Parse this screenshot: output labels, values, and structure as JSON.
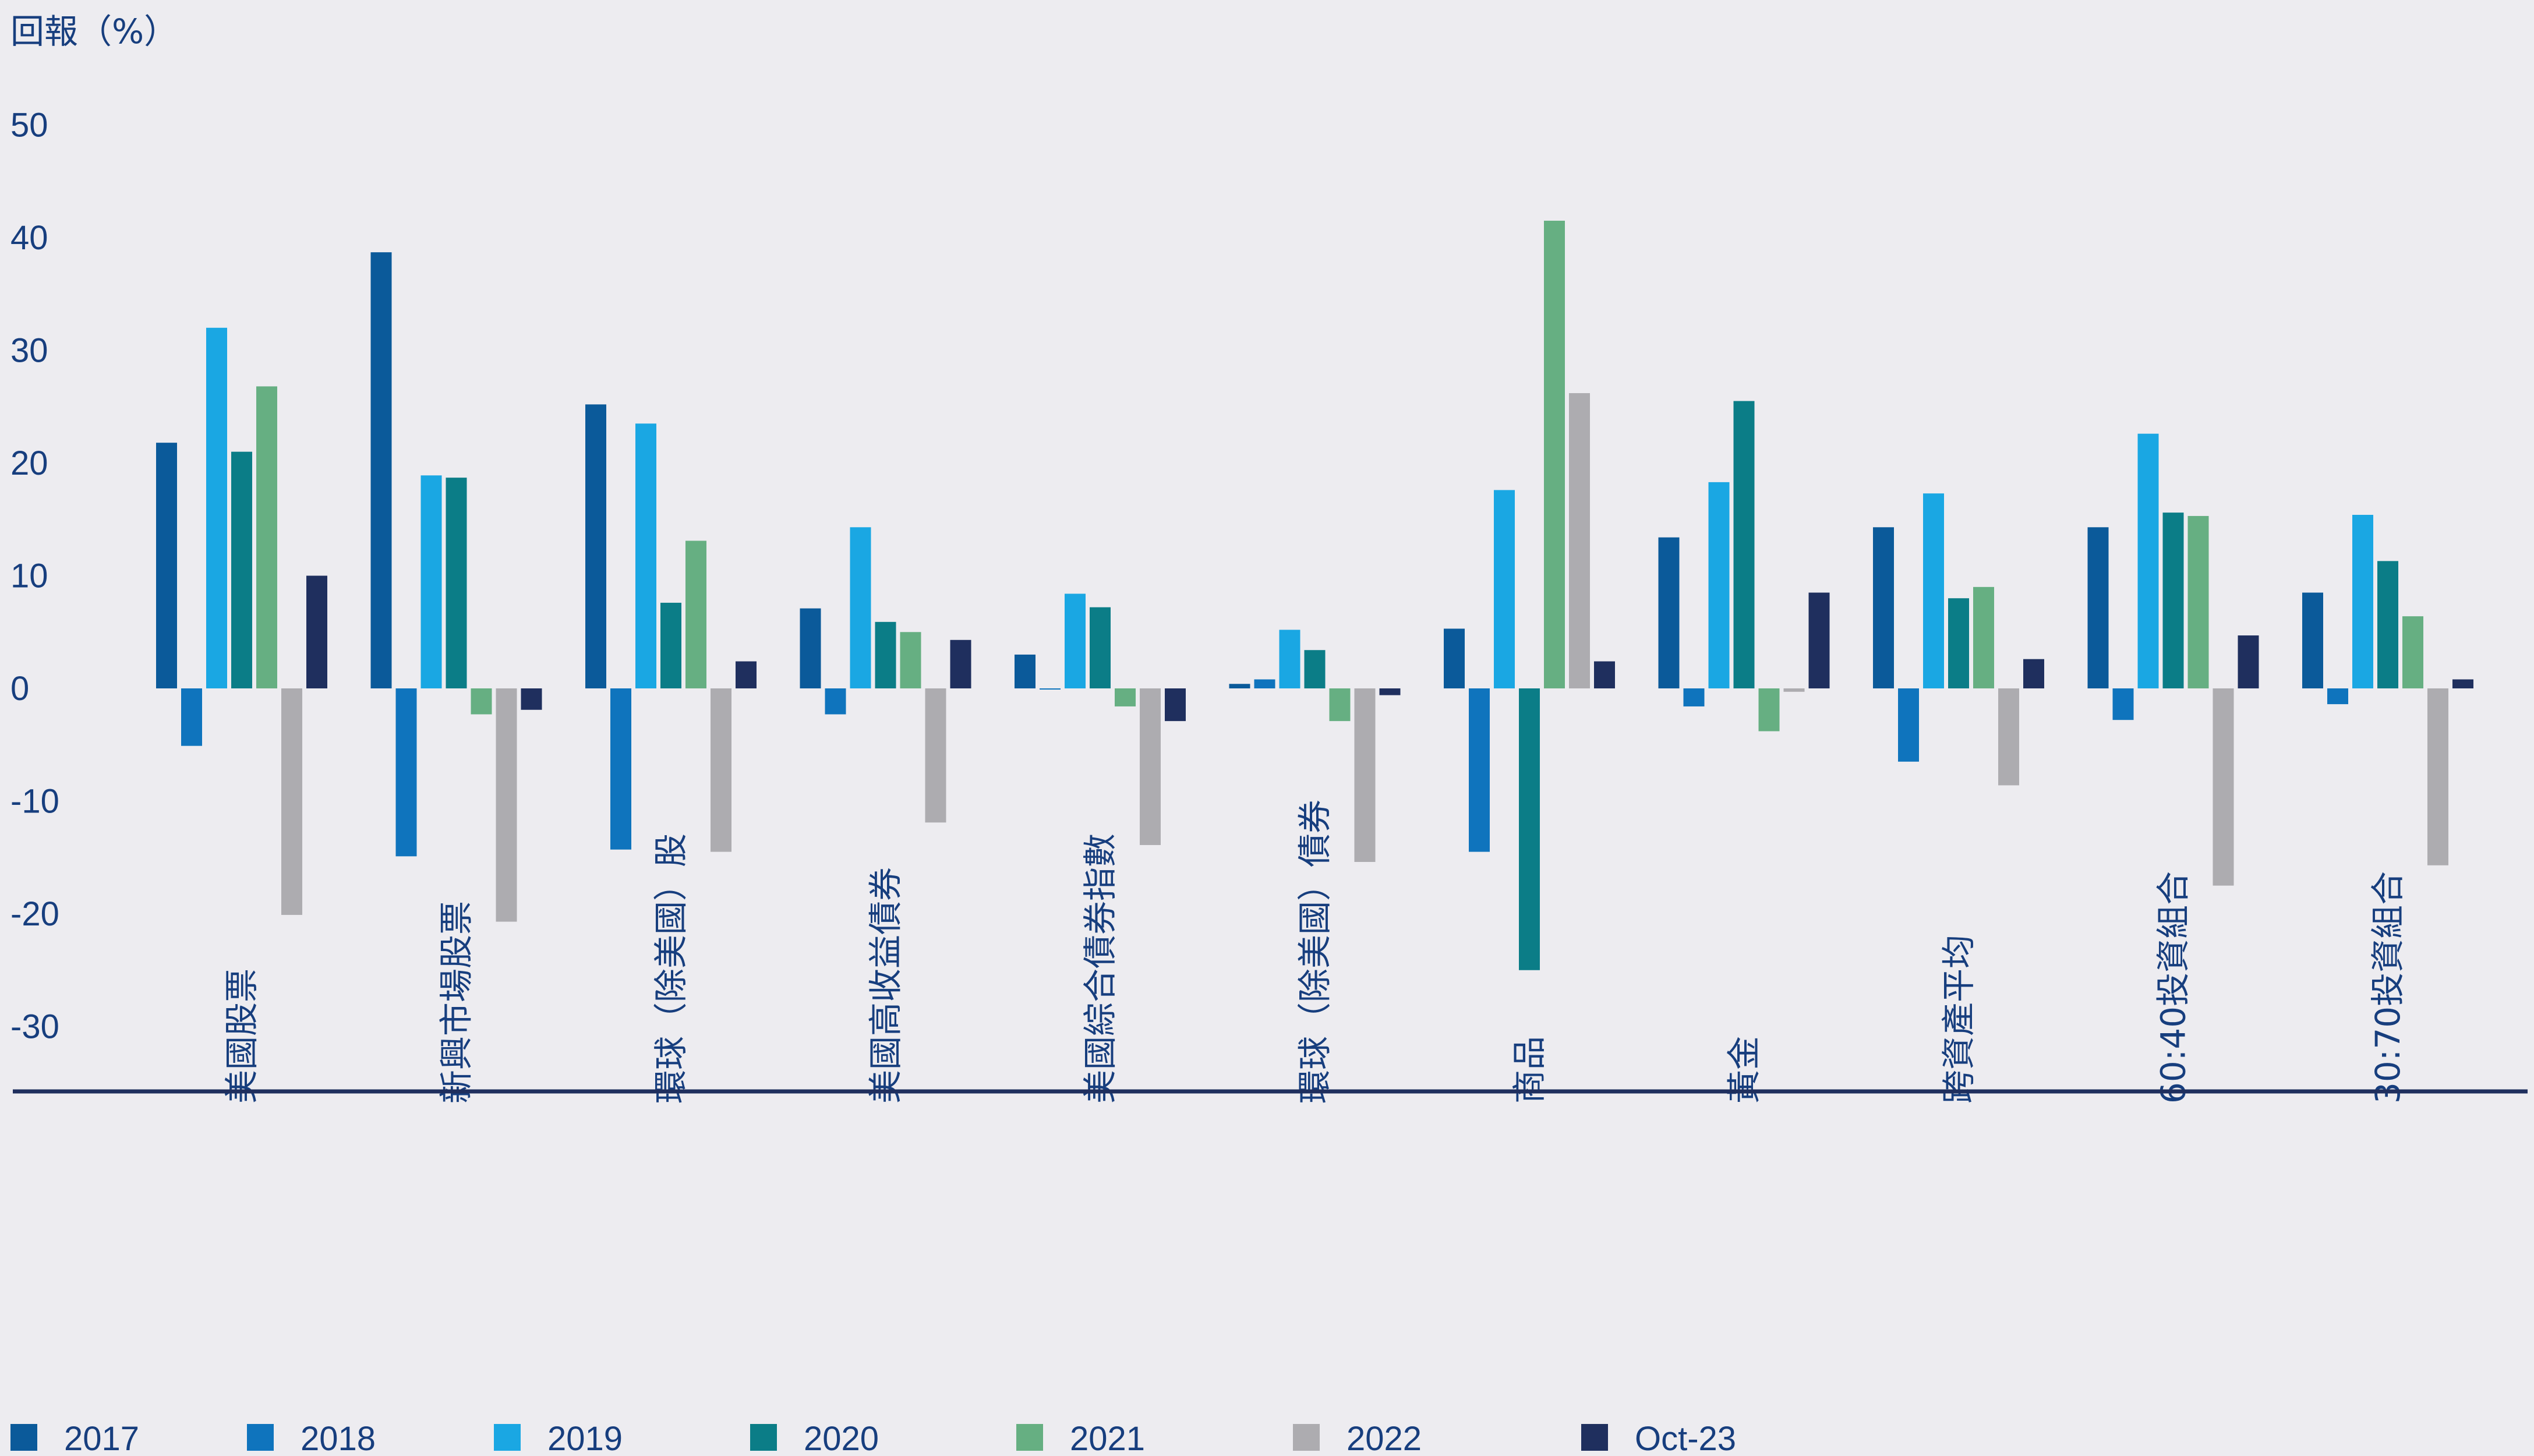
{
  "chart_data": {
    "type": "bar",
    "ylabel": "回報（%）",
    "yticks": [
      50,
      40,
      30,
      20,
      10,
      0,
      -10,
      -20,
      -30
    ],
    "ylim": [
      -35,
      55
    ],
    "categories": [
      "美國股票",
      "新興市場股票",
      "環球（除美國）股",
      "美國高收益債券",
      "美國綜合債券指數",
      "環球（除美國）債券",
      "商品",
      "黃金",
      "跨資產平均",
      "60:40投資組合",
      "30:70投資組合"
    ],
    "series": [
      {
        "name": "2017",
        "color": "#0b5a9a",
        "values": [
          21.8,
          38.7,
          25.2,
          7.1,
          3.0,
          0.4,
          5.3,
          13.4,
          14.3,
          14.3,
          8.5
        ]
      },
      {
        "name": "2018",
        "color": "#0f74bd",
        "values": [
          -5.1,
          -14.9,
          -14.3,
          -2.3,
          -0.1,
          0.8,
          -14.5,
          -1.6,
          -6.5,
          -2.8,
          -1.4
        ]
      },
      {
        "name": "2019",
        "color": "#1aa7e3",
        "values": [
          32.0,
          18.9,
          23.5,
          14.3,
          8.4,
          5.2,
          17.6,
          18.3,
          17.3,
          22.6,
          15.4
        ]
      },
      {
        "name": "2020",
        "color": "#0b7d87",
        "values": [
          21.0,
          18.7,
          7.6,
          5.9,
          7.2,
          3.4,
          -25.0,
          25.5,
          8.0,
          15.6,
          11.3
        ]
      },
      {
        "name": "2021",
        "color": "#66af82",
        "values": [
          26.8,
          -2.3,
          13.1,
          5.0,
          -1.6,
          -2.9,
          41.5,
          -3.8,
          9.0,
          15.3,
          6.4
        ]
      },
      {
        "name": "2022",
        "color": "#adacb0",
        "values": [
          -20.1,
          -20.7,
          -14.5,
          -11.9,
          -13.9,
          -15.4,
          26.2,
          -0.3,
          -8.6,
          -17.5,
          -15.7
        ]
      },
      {
        "name": "Oct-23",
        "color": "#1f2f5e",
        "values": [
          10.0,
          -1.9,
          2.4,
          4.3,
          -2.9,
          -0.6,
          2.4,
          8.5,
          2.6,
          4.7,
          0.8
        ]
      }
    ]
  }
}
